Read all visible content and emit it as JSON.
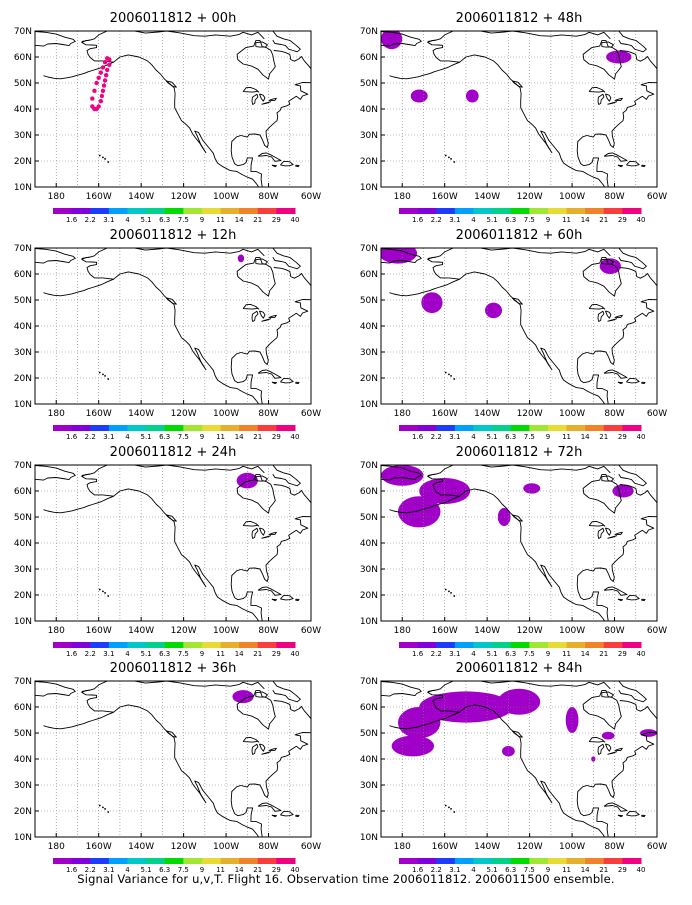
{
  "caption": "Signal Variance for u,v,T. Flight 16. Observation time 2006011812. 2006011500 ensemble.",
  "colorbar": {
    "labels": [
      "1.6",
      "2.2",
      "3.1",
      "4",
      "5.1",
      "6.3",
      "7.5",
      "9",
      "11",
      "14",
      "21",
      "29",
      "40"
    ],
    "colors": [
      "#a000c8",
      "#8200dc",
      "#1e3cff",
      "#00a0ff",
      "#00c8c8",
      "#00d28c",
      "#00dc00",
      "#a0e632",
      "#e6dc32",
      "#e6af2d",
      "#f08228",
      "#fa3c3c",
      "#f00082"
    ]
  },
  "axes": {
    "lon_ticks": [
      "180",
      "160W",
      "140W",
      "120W",
      "100W",
      "80W",
      "60W"
    ],
    "lat_ticks": [
      "10N",
      "20N",
      "30N",
      "40N",
      "50N",
      "60N",
      "70N"
    ],
    "lon_range": [
      -190,
      -60
    ],
    "lat_range": [
      10,
      70
    ]
  },
  "map_colors": {
    "coast": "#000000",
    "grid": "#808080",
    "variance": "#a000c8",
    "observation": "#f00082"
  },
  "chart_data": [
    {
      "type": "map",
      "title": "2006011812 + 00h",
      "observation_points": [
        [
          -163,
          44
        ],
        [
          -162,
          47
        ],
        [
          -161,
          50
        ],
        [
          -160,
          52
        ],
        [
          -159,
          54
        ],
        [
          -158,
          56
        ],
        [
          -157,
          58
        ],
        [
          -156,
          59.5
        ],
        [
          -155,
          59
        ],
        [
          -155,
          57
        ],
        [
          -156,
          55
        ],
        [
          -156.5,
          53
        ],
        [
          -157,
          51
        ],
        [
          -157.5,
          49
        ],
        [
          -158,
          47
        ],
        [
          -158.5,
          45
        ],
        [
          -159,
          43
        ],
        [
          -160,
          41
        ],
        [
          -161,
          40
        ],
        [
          -162,
          40
        ],
        [
          -163,
          41
        ]
      ],
      "variance_regions": []
    },
    {
      "type": "map",
      "title": "2006011812 + 12h",
      "observation_points": [],
      "variance_regions": [
        {
          "lon": -93,
          "lat": 66,
          "rlon": 1.5,
          "rlat": 1.5
        }
      ]
    },
    {
      "type": "map",
      "title": "2006011812 + 24h",
      "observation_points": [],
      "variance_regions": [
        {
          "lon": -90,
          "lat": 64,
          "rlon": 5,
          "rlat": 3
        }
      ]
    },
    {
      "type": "map",
      "title": "2006011812 + 36h",
      "observation_points": [],
      "variance_regions": [
        {
          "lon": -92,
          "lat": 64,
          "rlon": 5,
          "rlat": 2.5
        }
      ]
    },
    {
      "type": "map",
      "title": "2006011812 + 48h",
      "observation_points": [],
      "variance_regions": [
        {
          "lon": -185,
          "lat": 67,
          "rlon": 5,
          "rlat": 4
        },
        {
          "lon": -172,
          "lat": 45,
          "rlon": 4,
          "rlat": 2.5
        },
        {
          "lon": -147,
          "lat": 45,
          "rlon": 3,
          "rlat": 2.5
        },
        {
          "lon": -78,
          "lat": 60,
          "rlon": 6,
          "rlat": 2.5
        }
      ]
    },
    {
      "type": "map",
      "title": "2006011812 + 60h",
      "observation_points": [],
      "variance_regions": [
        {
          "lon": -182,
          "lat": 68,
          "rlon": 9,
          "rlat": 4
        },
        {
          "lon": -166,
          "lat": 49,
          "rlon": 5,
          "rlat": 4
        },
        {
          "lon": -137,
          "lat": 46,
          "rlon": 4,
          "rlat": 3
        },
        {
          "lon": -82,
          "lat": 63,
          "rlon": 5,
          "rlat": 3
        }
      ]
    },
    {
      "type": "map",
      "title": "2006011812 + 72h",
      "observation_points": [],
      "variance_regions": [
        {
          "lon": -180,
          "lat": 66,
          "rlon": 10,
          "rlat": 4
        },
        {
          "lon": -160,
          "lat": 60,
          "rlon": 12,
          "rlat": 5
        },
        {
          "lon": -172,
          "lat": 52,
          "rlon": 10,
          "rlat": 6
        },
        {
          "lon": -132,
          "lat": 50,
          "rlon": 3,
          "rlat": 3.5
        },
        {
          "lon": -119,
          "lat": 61,
          "rlon": 4,
          "rlat": 2
        },
        {
          "lon": -76,
          "lat": 60,
          "rlon": 5,
          "rlat": 2.5
        }
      ]
    },
    {
      "type": "map",
      "title": "2006011812 + 84h",
      "observation_points": [],
      "variance_regions": [
        {
          "lon": -150,
          "lat": 60,
          "rlon": 22,
          "rlat": 6
        },
        {
          "lon": -172,
          "lat": 54,
          "rlon": 10,
          "rlat": 6
        },
        {
          "lon": -175,
          "lat": 45,
          "rlon": 10,
          "rlat": 4
        },
        {
          "lon": -125,
          "lat": 62,
          "rlon": 10,
          "rlat": 5
        },
        {
          "lon": -130,
          "lat": 43,
          "rlon": 3,
          "rlat": 2
        },
        {
          "lon": -100,
          "lat": 55,
          "rlon": 3,
          "rlat": 5
        },
        {
          "lon": -83,
          "lat": 49,
          "rlon": 3,
          "rlat": 1.5
        },
        {
          "lon": -64,
          "lat": 50,
          "rlon": 4,
          "rlat": 1.5
        },
        {
          "lon": -90,
          "lat": 40,
          "rlon": 1,
          "rlat": 1
        }
      ]
    }
  ]
}
